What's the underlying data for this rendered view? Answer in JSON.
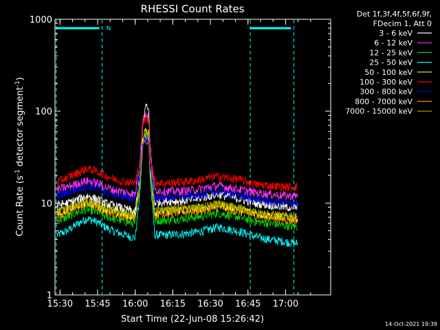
{
  "chart_data": {
    "type": "line",
    "title": "RHESSI Count Rates",
    "xlabel": "Start Time (22-Jun-08 15:26:42)",
    "ylabel_main": "Count Rate (s",
    "ylabel_sup1": "-1",
    "ylabel_mid": " detector segment",
    "ylabel_sup2": "-1",
    "ylabel_end": ")",
    "y_scale": "log",
    "ylim": [
      1,
      1000
    ],
    "xlim_minutes": [
      15.4667,
      17.3
    ],
    "x_ticks": [
      {
        "label": "15:30",
        "t": 15.5
      },
      {
        "label": "15:45",
        "t": 15.75
      },
      {
        "label": "16:00",
        "t": 16.0
      },
      {
        "label": "16:15",
        "t": 16.25
      },
      {
        "label": "16:30",
        "t": 16.5
      },
      {
        "label": "16:45",
        "t": 16.75
      },
      {
        "label": "17:00",
        "t": 17.0
      }
    ],
    "y_ticks": [
      {
        "label": "1",
        "v": 1
      },
      {
        "label": "10",
        "v": 10
      },
      {
        "label": "100",
        "v": 100
      },
      {
        "label": "1000",
        "v": 1000
      }
    ],
    "legend_header_1": "Det 1f,3f,4f,5f,6f,9f,",
    "legend_header_2": "FDecim 1, Att 0",
    "timestamp": "14-Oct-2021 19:39",
    "night_marker_label": "N",
    "attenuator_lines_t": [
      15.475,
      15.78,
      16.765,
      17.055
    ],
    "night_bars": [
      [
        15.475,
        15.78
      ],
      [
        16.765,
        17.055
      ]
    ],
    "x_time": [
      15.48,
      15.55,
      15.62,
      15.68,
      15.75,
      15.8,
      15.85,
      15.9,
      15.95,
      16.0,
      16.03,
      16.05,
      16.07,
      16.09,
      16.1,
      16.13,
      16.2,
      16.3,
      16.4,
      16.5,
      16.55,
      16.6,
      16.7,
      16.8,
      16.9,
      17.0,
      17.08
    ],
    "series": [
      {
        "name": "3 - 6 keV",
        "color": "#ffffff",
        "values": [
          9.5,
          10,
          11,
          12,
          11,
          10,
          9.5,
          9,
          8.5,
          8,
          20,
          70,
          115,
          100,
          40,
          10,
          10.5,
          10.5,
          11,
          12,
          12.5,
          12,
          11,
          10,
          9.5,
          9,
          9
        ]
      },
      {
        "name": "6 - 12 keV",
        "color": "#ff33ff",
        "values": [
          14,
          15,
          16.5,
          17.5,
          16.5,
          15,
          14,
          13.5,
          13,
          12.5,
          28,
          75,
          95,
          85,
          35,
          14,
          13.5,
          13.5,
          14,
          15,
          15.5,
          15,
          14,
          13,
          12.5,
          12,
          12
        ]
      },
      {
        "name": "12 - 25 keV",
        "color": "#00dd00",
        "values": [
          6.5,
          7,
          8,
          8.5,
          8,
          7.2,
          6.8,
          6.5,
          6.2,
          6,
          15,
          45,
          60,
          55,
          22,
          6.5,
          6.5,
          6.8,
          7,
          7.5,
          7.8,
          7.5,
          7,
          6.3,
          6,
          5.7,
          5.5
        ]
      },
      {
        "name": "25 - 50 keV",
        "color": "#00ffff",
        "values": [
          4.5,
          5,
          6,
          6.8,
          6.2,
          5.5,
          5,
          4.7,
          4.4,
          4.2,
          12,
          40,
          55,
          50,
          18,
          4.5,
          4.5,
          4.6,
          4.8,
          5.2,
          5.5,
          5.3,
          4.9,
          4.3,
          4,
          3.8,
          3.6
        ]
      },
      {
        "name": "50 - 100 keV",
        "color": "#ffff00",
        "values": [
          8,
          8.5,
          9.5,
          10.2,
          9.5,
          8.7,
          8.2,
          7.8,
          7.4,
          7.2,
          16,
          50,
          65,
          58,
          24,
          8,
          8.2,
          8.5,
          8.8,
          9.3,
          9.6,
          9.3,
          8.7,
          7.8,
          7.4,
          7.1,
          7
        ]
      },
      {
        "name": "100 - 300 keV",
        "color": "#ff0000",
        "values": [
          17,
          19,
          21.5,
          24,
          22,
          20,
          18.5,
          17.5,
          17,
          16.5,
          28,
          70,
          85,
          78,
          35,
          17,
          16.5,
          17,
          17.5,
          19,
          19.5,
          19,
          18,
          16,
          15.5,
          15,
          15
        ]
      },
      {
        "name": "300 - 800 keV",
        "color": "#0000ff",
        "values": [
          12,
          13,
          14.5,
          15.5,
          14.5,
          13.5,
          12.5,
          12,
          11.5,
          11,
          20,
          45,
          50,
          47,
          25,
          11.5,
          11.5,
          11.8,
          12,
          13,
          13.5,
          13,
          12,
          11,
          10.5,
          10,
          10
        ]
      },
      {
        "name": "800 - 7000 keV",
        "color": "#ff8800",
        "values": [
          7.5,
          8,
          9,
          9.8,
          9,
          8.3,
          7.8,
          7.4,
          7.1,
          6.9,
          15,
          42,
          50,
          46,
          22,
          7.5,
          7.7,
          8,
          8.2,
          8.7,
          9,
          8.7,
          8.1,
          7.3,
          6.9,
          6.6,
          6.5
        ]
      },
      {
        "name": "7000 - 15000 keV",
        "color": "#999900",
        "values": [
          8.2,
          8.8,
          9.8,
          10.5,
          9.8,
          9,
          8.5,
          8.1,
          7.8,
          7.5,
          16,
          45,
          55,
          50,
          23,
          8.2,
          8.4,
          8.7,
          8.9,
          9.4,
          9.7,
          9.4,
          8.8,
          7.9,
          7.5,
          7.2,
          7.1
        ]
      }
    ]
  }
}
